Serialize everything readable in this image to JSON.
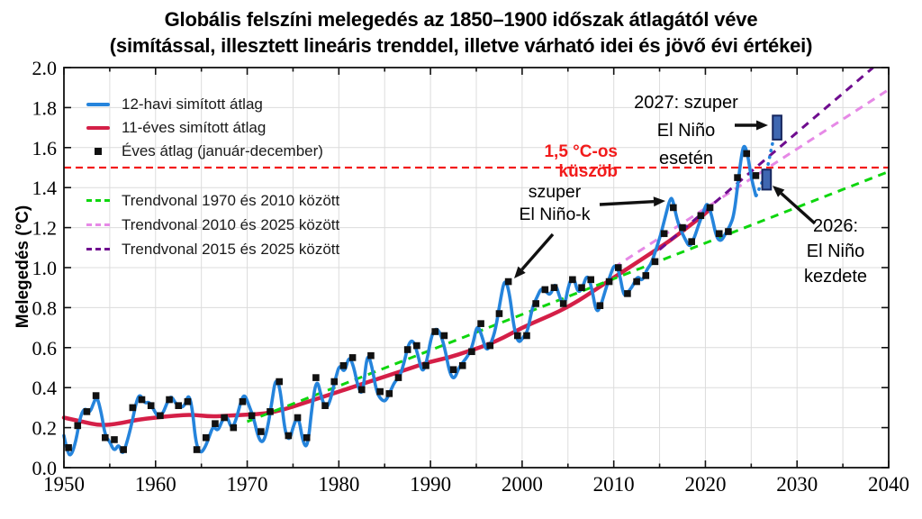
{
  "title": {
    "line1": "Globális felszíni melegedés az 1850–1900 időszak átlagától véve",
    "line2": "(simítással, illesztett lineáris trenddel, illetve várható idei és jövő évi értékei)"
  },
  "axes": {
    "y_label": "Melegedés (°C)",
    "x_tick_labels": [
      "1950",
      "1960",
      "1970",
      "1980",
      "1990",
      "2000",
      "2010",
      "2020",
      "2030",
      "2040"
    ],
    "y_tick_labels": [
      "0.0",
      "0.2",
      "0.4",
      "0.6",
      "0.8",
      "1.0",
      "1.2",
      "1.4",
      "1.6",
      "1.8",
      "2.0"
    ]
  },
  "legend": {
    "items": [
      {
        "label": "12-havi simított átlag",
        "swatch": "line",
        "color": "#2584dc"
      },
      {
        "label": "11-éves simított átlag",
        "swatch": "line",
        "color": "#d41f47"
      },
      {
        "label": "Éves átlag (január-december)",
        "swatch": "square",
        "color": "#111111"
      },
      {
        "label": "Trendvonal 1970 és 2010 között",
        "swatch": "dash",
        "color": "#0ed60e"
      },
      {
        "label": "Trendvonal 2010 és 2025 között",
        "swatch": "dash",
        "color": "#e689e6"
      },
      {
        "label": "Trendvonal 2015 és 2025 között",
        "swatch": "dash",
        "color": "#6f0d8f"
      }
    ]
  },
  "annotations": {
    "threshold_label": "1,5 °C-os küszöb",
    "super_el_ninos": {
      "line1": "szuper",
      "line2": "El Niño-k"
    },
    "label_2027": {
      "line1": "2027: szuper",
      "line2": "El Niño",
      "line3": "esetén"
    },
    "label_2026": {
      "line1": "2026:",
      "line2": "El Niño",
      "line3": "kezdete"
    }
  },
  "chart_data": {
    "type": "line",
    "title": "Globális felszíni melegedés az 1850–1900 időszak átlagától véve",
    "xlabel": "",
    "ylabel": "Melegedés (°C)",
    "x_range": [
      1950,
      2040
    ],
    "y_range": [
      0.0,
      2.0
    ],
    "grid": true,
    "grid_x_step_years": 5,
    "grid_y_step": 0.2,
    "grid_color": "#dcdcdc",
    "legend_position": "top-left",
    "threshold": {
      "value": 1.5,
      "label": "1,5 °C-os küszöb",
      "color": "#f21b1b"
    },
    "series": [
      {
        "name": "12-havi simított átlag",
        "type": "line",
        "color": "#2584dc",
        "points": [
          [
            1950.0,
            0.16
          ],
          [
            1950.4,
            0.07
          ],
          [
            1950.8,
            0.06
          ],
          [
            1951.3,
            0.13
          ],
          [
            1951.8,
            0.26
          ],
          [
            1952.3,
            0.3
          ],
          [
            1952.8,
            0.27
          ],
          [
            1953.3,
            0.33
          ],
          [
            1953.6,
            0.36
          ],
          [
            1954.1,
            0.27
          ],
          [
            1954.5,
            0.16
          ],
          [
            1955.0,
            0.13
          ],
          [
            1955.5,
            0.08
          ],
          [
            1956.0,
            0.12
          ],
          [
            1956.4,
            0.06
          ],
          [
            1956.9,
            0.13
          ],
          [
            1957.4,
            0.22
          ],
          [
            1957.9,
            0.33
          ],
          [
            1958.3,
            0.37
          ],
          [
            1958.8,
            0.32
          ],
          [
            1959.3,
            0.33
          ],
          [
            1959.8,
            0.29
          ],
          [
            1960.3,
            0.25
          ],
          [
            1960.8,
            0.27
          ],
          [
            1961.3,
            0.33
          ],
          [
            1961.7,
            0.36
          ],
          [
            1962.2,
            0.32
          ],
          [
            1962.7,
            0.3
          ],
          [
            1963.2,
            0.31
          ],
          [
            1963.6,
            0.37
          ],
          [
            1964.0,
            0.3
          ],
          [
            1964.4,
            0.12
          ],
          [
            1964.9,
            0.07
          ],
          [
            1965.4,
            0.1
          ],
          [
            1965.9,
            0.16
          ],
          [
            1966.3,
            0.21
          ],
          [
            1966.8,
            0.18
          ],
          [
            1967.3,
            0.24
          ],
          [
            1967.8,
            0.26
          ],
          [
            1968.3,
            0.19
          ],
          [
            1968.8,
            0.24
          ],
          [
            1969.3,
            0.33
          ],
          [
            1969.7,
            0.37
          ],
          [
            1970.2,
            0.31
          ],
          [
            1970.7,
            0.25
          ],
          [
            1971.2,
            0.15
          ],
          [
            1971.7,
            0.12
          ],
          [
            1972.2,
            0.19
          ],
          [
            1972.7,
            0.33
          ],
          [
            1973.1,
            0.45
          ],
          [
            1973.6,
            0.4
          ],
          [
            1974.1,
            0.18
          ],
          [
            1974.6,
            0.13
          ],
          [
            1975.1,
            0.22
          ],
          [
            1975.6,
            0.26
          ],
          [
            1976.1,
            0.12
          ],
          [
            1976.6,
            0.1
          ],
          [
            1977.1,
            0.32
          ],
          [
            1977.6,
            0.45
          ],
          [
            1978.1,
            0.35
          ],
          [
            1978.6,
            0.29
          ],
          [
            1979.1,
            0.34
          ],
          [
            1979.6,
            0.44
          ],
          [
            1980.1,
            0.52
          ],
          [
            1980.6,
            0.47
          ],
          [
            1981.1,
            0.56
          ],
          [
            1981.6,
            0.51
          ],
          [
            1982.1,
            0.4
          ],
          [
            1982.6,
            0.36
          ],
          [
            1983.1,
            0.58
          ],
          [
            1983.6,
            0.51
          ],
          [
            1984.1,
            0.38
          ],
          [
            1984.6,
            0.34
          ],
          [
            1985.1,
            0.33
          ],
          [
            1985.6,
            0.38
          ],
          [
            1986.1,
            0.43
          ],
          [
            1986.6,
            0.45
          ],
          [
            1987.1,
            0.52
          ],
          [
            1987.6,
            0.62
          ],
          [
            1988.1,
            0.64
          ],
          [
            1988.6,
            0.57
          ],
          [
            1989.1,
            0.47
          ],
          [
            1989.6,
            0.53
          ],
          [
            1990.1,
            0.66
          ],
          [
            1990.6,
            0.7
          ],
          [
            1991.1,
            0.67
          ],
          [
            1991.6,
            0.59
          ],
          [
            1992.1,
            0.47
          ],
          [
            1992.6,
            0.44
          ],
          [
            1993.1,
            0.5
          ],
          [
            1993.6,
            0.53
          ],
          [
            1994.1,
            0.56
          ],
          [
            1994.6,
            0.61
          ],
          [
            1995.1,
            0.72
          ],
          [
            1995.6,
            0.66
          ],
          [
            1996.1,
            0.58
          ],
          [
            1996.6,
            0.62
          ],
          [
            1997.1,
            0.69
          ],
          [
            1997.6,
            0.83
          ],
          [
            1998.1,
            0.95
          ],
          [
            1998.6,
            0.88
          ],
          [
            1999.1,
            0.7
          ],
          [
            1999.6,
            0.62
          ],
          [
            2000.1,
            0.65
          ],
          [
            2000.6,
            0.68
          ],
          [
            2001.1,
            0.8
          ],
          [
            2001.6,
            0.85
          ],
          [
            2002.1,
            0.9
          ],
          [
            2002.6,
            0.88
          ],
          [
            2003.1,
            0.86
          ],
          [
            2003.6,
            0.93
          ],
          [
            2004.1,
            0.85
          ],
          [
            2004.6,
            0.8
          ],
          [
            2005.1,
            0.92
          ],
          [
            2005.6,
            0.96
          ],
          [
            2006.1,
            0.87
          ],
          [
            2006.6,
            0.9
          ],
          [
            2007.1,
            0.97
          ],
          [
            2007.6,
            0.9
          ],
          [
            2008.1,
            0.77
          ],
          [
            2008.6,
            0.81
          ],
          [
            2009.1,
            0.89
          ],
          [
            2009.6,
            0.96
          ],
          [
            2010.1,
            1.02
          ],
          [
            2010.6,
            0.98
          ],
          [
            2011.1,
            0.85
          ],
          [
            2011.6,
            0.88
          ],
          [
            2012.1,
            0.91
          ],
          [
            2012.6,
            0.96
          ],
          [
            2013.1,
            0.93
          ],
          [
            2013.6,
            0.99
          ],
          [
            2014.1,
            1.02
          ],
          [
            2014.6,
            1.09
          ],
          [
            2015.1,
            1.16
          ],
          [
            2015.6,
            1.25
          ],
          [
            2016.1,
            1.34
          ],
          [
            2016.4,
            1.35
          ],
          [
            2016.9,
            1.24
          ],
          [
            2017.3,
            1.19
          ],
          [
            2017.8,
            1.14
          ],
          [
            2018.3,
            1.1
          ],
          [
            2018.8,
            1.15
          ],
          [
            2019.3,
            1.22
          ],
          [
            2019.8,
            1.28
          ],
          [
            2020.2,
            1.33
          ],
          [
            2020.7,
            1.26
          ],
          [
            2021.2,
            1.15
          ],
          [
            2021.7,
            1.13
          ],
          [
            2022.2,
            1.17
          ],
          [
            2022.7,
            1.21
          ],
          [
            2023.1,
            1.26
          ],
          [
            2023.5,
            1.4
          ],
          [
            2023.9,
            1.55
          ],
          [
            2024.2,
            1.62
          ],
          [
            2024.6,
            1.57
          ],
          [
            2025.0,
            1.45
          ],
          [
            2025.5,
            1.36
          ]
        ]
      },
      {
        "name": "11-éves simított átlag",
        "type": "line",
        "color": "#d41f47",
        "points": [
          [
            1950,
            0.25
          ],
          [
            1952,
            0.23
          ],
          [
            1954,
            0.21
          ],
          [
            1956,
            0.22
          ],
          [
            1958,
            0.24
          ],
          [
            1960,
            0.25
          ],
          [
            1962,
            0.26
          ],
          [
            1964,
            0.265
          ],
          [
            1966,
            0.255
          ],
          [
            1968,
            0.26
          ],
          [
            1970,
            0.265
          ],
          [
            1972,
            0.27
          ],
          [
            1974,
            0.29
          ],
          [
            1976,
            0.32
          ],
          [
            1978,
            0.35
          ],
          [
            1980,
            0.38
          ],
          [
            1982,
            0.41
          ],
          [
            1984,
            0.44
          ],
          [
            1986,
            0.47
          ],
          [
            1988,
            0.5
          ],
          [
            1990,
            0.53
          ],
          [
            1992,
            0.55
          ],
          [
            1994,
            0.58
          ],
          [
            1996,
            0.61
          ],
          [
            1998,
            0.65
          ],
          [
            2000,
            0.7
          ],
          [
            2002,
            0.74
          ],
          [
            2004,
            0.78
          ],
          [
            2006,
            0.83
          ],
          [
            2008,
            0.89
          ],
          [
            2010,
            0.95
          ],
          [
            2012,
            1.01
          ],
          [
            2014,
            1.07
          ],
          [
            2016,
            1.13
          ],
          [
            2018,
            1.2
          ],
          [
            2020,
            1.27
          ],
          [
            2020.6,
            1.3
          ]
        ]
      },
      {
        "name": "Éves átlag (január-december)",
        "type": "scatter",
        "color": "#111111",
        "years": [
          1950,
          1951,
          1952,
          1953,
          1954,
          1955,
          1956,
          1957,
          1958,
          1959,
          1960,
          1961,
          1962,
          1963,
          1964,
          1965,
          1966,
          1967,
          1968,
          1969,
          1970,
          1971,
          1972,
          1973,
          1974,
          1975,
          1976,
          1977,
          1978,
          1979,
          1980,
          1981,
          1982,
          1983,
          1984,
          1985,
          1986,
          1987,
          1988,
          1989,
          1990,
          1991,
          1992,
          1993,
          1994,
          1995,
          1996,
          1997,
          1998,
          1999,
          2000,
          2001,
          2002,
          2003,
          2004,
          2005,
          2006,
          2007,
          2008,
          2009,
          2010,
          2011,
          2012,
          2013,
          2014,
          2015,
          2016,
          2017,
          2018,
          2019,
          2020,
          2021,
          2022,
          2023,
          2024,
          2025
        ],
        "values": [
          0.1,
          0.21,
          0.28,
          0.36,
          0.15,
          0.14,
          0.09,
          0.3,
          0.34,
          0.31,
          0.26,
          0.34,
          0.31,
          0.33,
          0.09,
          0.15,
          0.22,
          0.25,
          0.2,
          0.33,
          0.26,
          0.18,
          0.28,
          0.43,
          0.16,
          0.25,
          0.15,
          0.45,
          0.31,
          0.43,
          0.51,
          0.55,
          0.39,
          0.56,
          0.38,
          0.37,
          0.45,
          0.59,
          0.61,
          0.51,
          0.68,
          0.66,
          0.49,
          0.51,
          0.58,
          0.72,
          0.61,
          0.77,
          0.93,
          0.66,
          0.66,
          0.82,
          0.89,
          0.9,
          0.82,
          0.94,
          0.9,
          0.94,
          0.81,
          0.93,
          1.0,
          0.87,
          0.93,
          0.96,
          1.03,
          1.17,
          1.3,
          1.2,
          1.13,
          1.26,
          1.3,
          1.17,
          1.18,
          1.45,
          1.57,
          1.46
        ]
      },
      {
        "name": "Trendvonal 1970 és 2010 között",
        "type": "trend",
        "color": "#0ed60e",
        "points": [
          [
            1970,
            0.23
          ],
          [
            2040,
            1.48
          ]
        ]
      },
      {
        "name": "Trendvonal 2010 és 2025 között",
        "type": "trend",
        "color": "#e689e6",
        "points": [
          [
            2010,
            1.0
          ],
          [
            2040,
            1.89
          ]
        ]
      },
      {
        "name": "Trendvonal 2015 és 2025 között",
        "type": "trend",
        "color": "#6f0d8f",
        "points": [
          [
            2015,
            1.09
          ],
          [
            2038.3,
            2.0
          ]
        ]
      }
    ],
    "forecast": {
      "dotted_color": "#2584dc",
      "dotted": [
        [
          2025.55,
          1.36
        ],
        [
          2026.1,
          1.42
        ],
        [
          2026.65,
          1.47
        ],
        [
          2027.3,
          1.62
        ],
        [
          2027.85,
          1.72
        ]
      ],
      "bar_fill": "#3f67b1",
      "bar_stroke": "#16265e",
      "bars": [
        {
          "label": "2026",
          "x_range": [
            2026.2,
            2027.15
          ],
          "value_range": [
            1.39,
            1.49
          ]
        },
        {
          "label": "2027",
          "x_range": [
            2027.35,
            2028.3
          ],
          "value_range": [
            1.64,
            1.76
          ]
        }
      ]
    }
  }
}
